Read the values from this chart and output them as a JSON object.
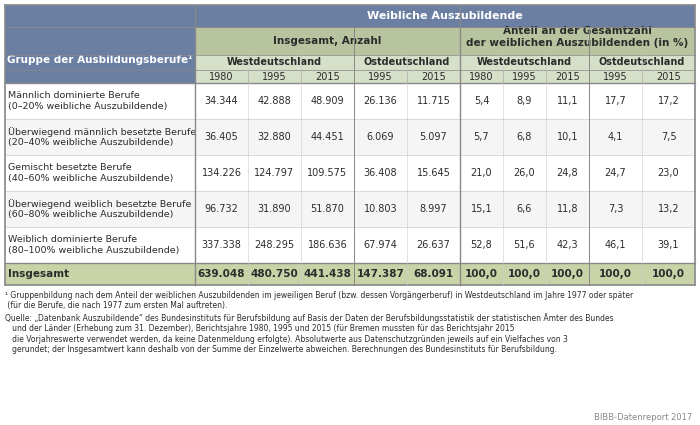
{
  "title": "Weibliche Auszubildende",
  "col_header_l1": "Weibliche Auszubildende",
  "col_header_l2a": "Insgesamt, Anzahl",
  "col_header_l2b": "Anteil an der Gesamtzahl\nder weiblichen Auszubildenden (in %)",
  "col_header_l3a": "Westdeutschland",
  "col_header_l3b": "Ostdeutschland",
  "col_header_l3c": "Westdeutschland",
  "col_header_l3d": "Ostdeutschland",
  "years_west": [
    "1980",
    "1995",
    "2015"
  ],
  "years_east": [
    "1995",
    "2015"
  ],
  "row_header": "Gruppe der Ausbildungsberufe¹",
  "rows": [
    {
      "label": "Männlich dominierte Berufe\n(0–20% weibliche Auszubildende)",
      "anzahl_west": [
        "34.344",
        "42.888",
        "48.909"
      ],
      "anzahl_ost": [
        "26.136",
        "11.715"
      ],
      "anteil_west": [
        "5,4",
        "8,9",
        "11,1"
      ],
      "anteil_ost": [
        "17,7",
        "17,2"
      ]
    },
    {
      "label": "Überwiegend männlich besetzte Berufe\n(20–40% weibliche Auszubildende)",
      "anzahl_west": [
        "36.405",
        "32.880",
        "44.451"
      ],
      "anzahl_ost": [
        "6.069",
        "5.097"
      ],
      "anteil_west": [
        "5,7",
        "6,8",
        "10,1"
      ],
      "anteil_ost": [
        "4,1",
        "7,5"
      ]
    },
    {
      "label": "Gemischt besetzte Berufe\n(40–60% weibliche Auszubildende)",
      "anzahl_west": [
        "134.226",
        "124.797",
        "109.575"
      ],
      "anzahl_ost": [
        "36.408",
        "15.645"
      ],
      "anteil_west": [
        "21,0",
        "26,0",
        "24,8"
      ],
      "anteil_ost": [
        "24,7",
        "23,0"
      ]
    },
    {
      "label": "Überwiegend weiblich besetzte Berufe\n(60–80% weibliche Auszubildende)",
      "anzahl_west": [
        "96.732",
        "31.890",
        "51.870"
      ],
      "anzahl_ost": [
        "10.803",
        "8.997"
      ],
      "anteil_west": [
        "15,1",
        "6,6",
        "11,8"
      ],
      "anteil_ost": [
        "7,3",
        "13,2"
      ]
    },
    {
      "label": "Weiblich dominierte Berufe\n(80–100% weibliche Auszubildende)",
      "anzahl_west": [
        "337.338",
        "248.295",
        "186.636"
      ],
      "anzahl_ost": [
        "67.974",
        "26.637"
      ],
      "anteil_west": [
        "52,8",
        "51,6",
        "42,3"
      ],
      "anteil_ost": [
        "46,1",
        "39,1"
      ]
    }
  ],
  "total_row": {
    "label": "Insgesamt",
    "anzahl_west": [
      "639.048",
      "480.750",
      "441.438"
    ],
    "anzahl_ost": [
      "147.387",
      "68.091"
    ],
    "anteil_west": [
      "100,0",
      "100,0",
      "100,0"
    ],
    "anteil_ost": [
      "100,0",
      "100,0"
    ]
  },
  "footnote1": "¹ Gruppenbildung nach dem Anteil der weiblichen Auszubildenden im jeweiligen Beruf (bzw. dessen Vorgängerberuf) in Westdeutschland im Jahre 1977 oder später\n (für die Berufe, die nach 1977 zum ersten Mal auftreten).",
  "footnote2": "Quelle: „Datenbank Auszubildende“ des Bundesinstituts für Berufsbildung auf Basis der Daten der Berufsbildungsstatistik der statistischen Ämter des Bundes\n   und der Länder (Erhebung zum 31. Dezember), Berichtsjahre 1980, 1995 und 2015 (für Bremen mussten für das Berichtsjahr 2015\n   die Vorjahreswerte verwendet werden, da keine Datenmeldung erfolgte). Absolutwerte aus Datenschutzgründen jeweils auf ein Vielfaches von 3\n   gerundet; der Insgesamtwert kann deshalb von der Summe der Einzelwerte abweichen. Berechnungen des Bundesinstituts für Berufsbildung.",
  "bibb_label": "BIBB-Datenreport 2017",
  "color_header_top": "#6b7fa3",
  "color_header_mid": "#b8c4a0",
  "color_header_year": "#d6dfc8",
  "color_row_normal": "#ffffff",
  "color_row_alt": "#f5f5f5",
  "color_total_bg": "#c8d4a8",
  "color_border": "#9aaa80",
  "color_text_dark": "#2c2c2c",
  "color_header_text": "#ffffff",
  "color_header_year_text": "#2c2c2c"
}
